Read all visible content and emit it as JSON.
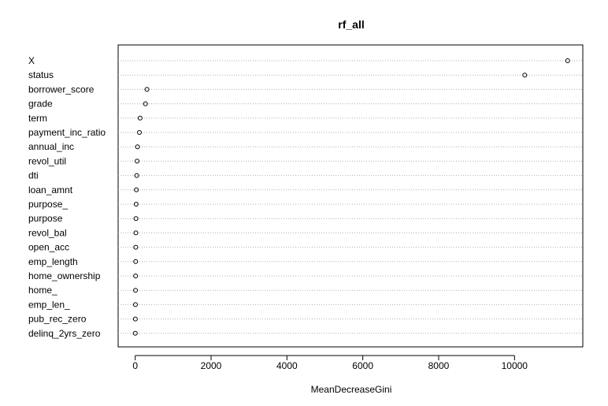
{
  "chart_data": {
    "type": "scatter",
    "title": "rf_all",
    "xlabel": "MeanDecreaseGini",
    "ylabel": "",
    "xlim": [
      -450,
      11800
    ],
    "xticks": [
      0,
      2000,
      4000,
      6000,
      8000,
      10000
    ],
    "grid": "horizontal dotted lines per variable",
    "categories": [
      "X",
      "status",
      "borrower_score",
      "grade",
      "term",
      "payment_inc_ratio",
      "annual_inc",
      "revol_util",
      "dti",
      "loan_amnt",
      "purpose_",
      "purpose",
      "revol_bal",
      "open_acc",
      "emp_length",
      "home_ownership",
      "home_",
      "emp_len_",
      "pub_rec_zero",
      "delinq_2yrs_zero"
    ],
    "values": [
      11400,
      10270,
      310,
      270,
      130,
      110,
      60,
      50,
      40,
      30,
      25,
      20,
      18,
      15,
      12,
      10,
      8,
      6,
      4,
      2
    ]
  }
}
